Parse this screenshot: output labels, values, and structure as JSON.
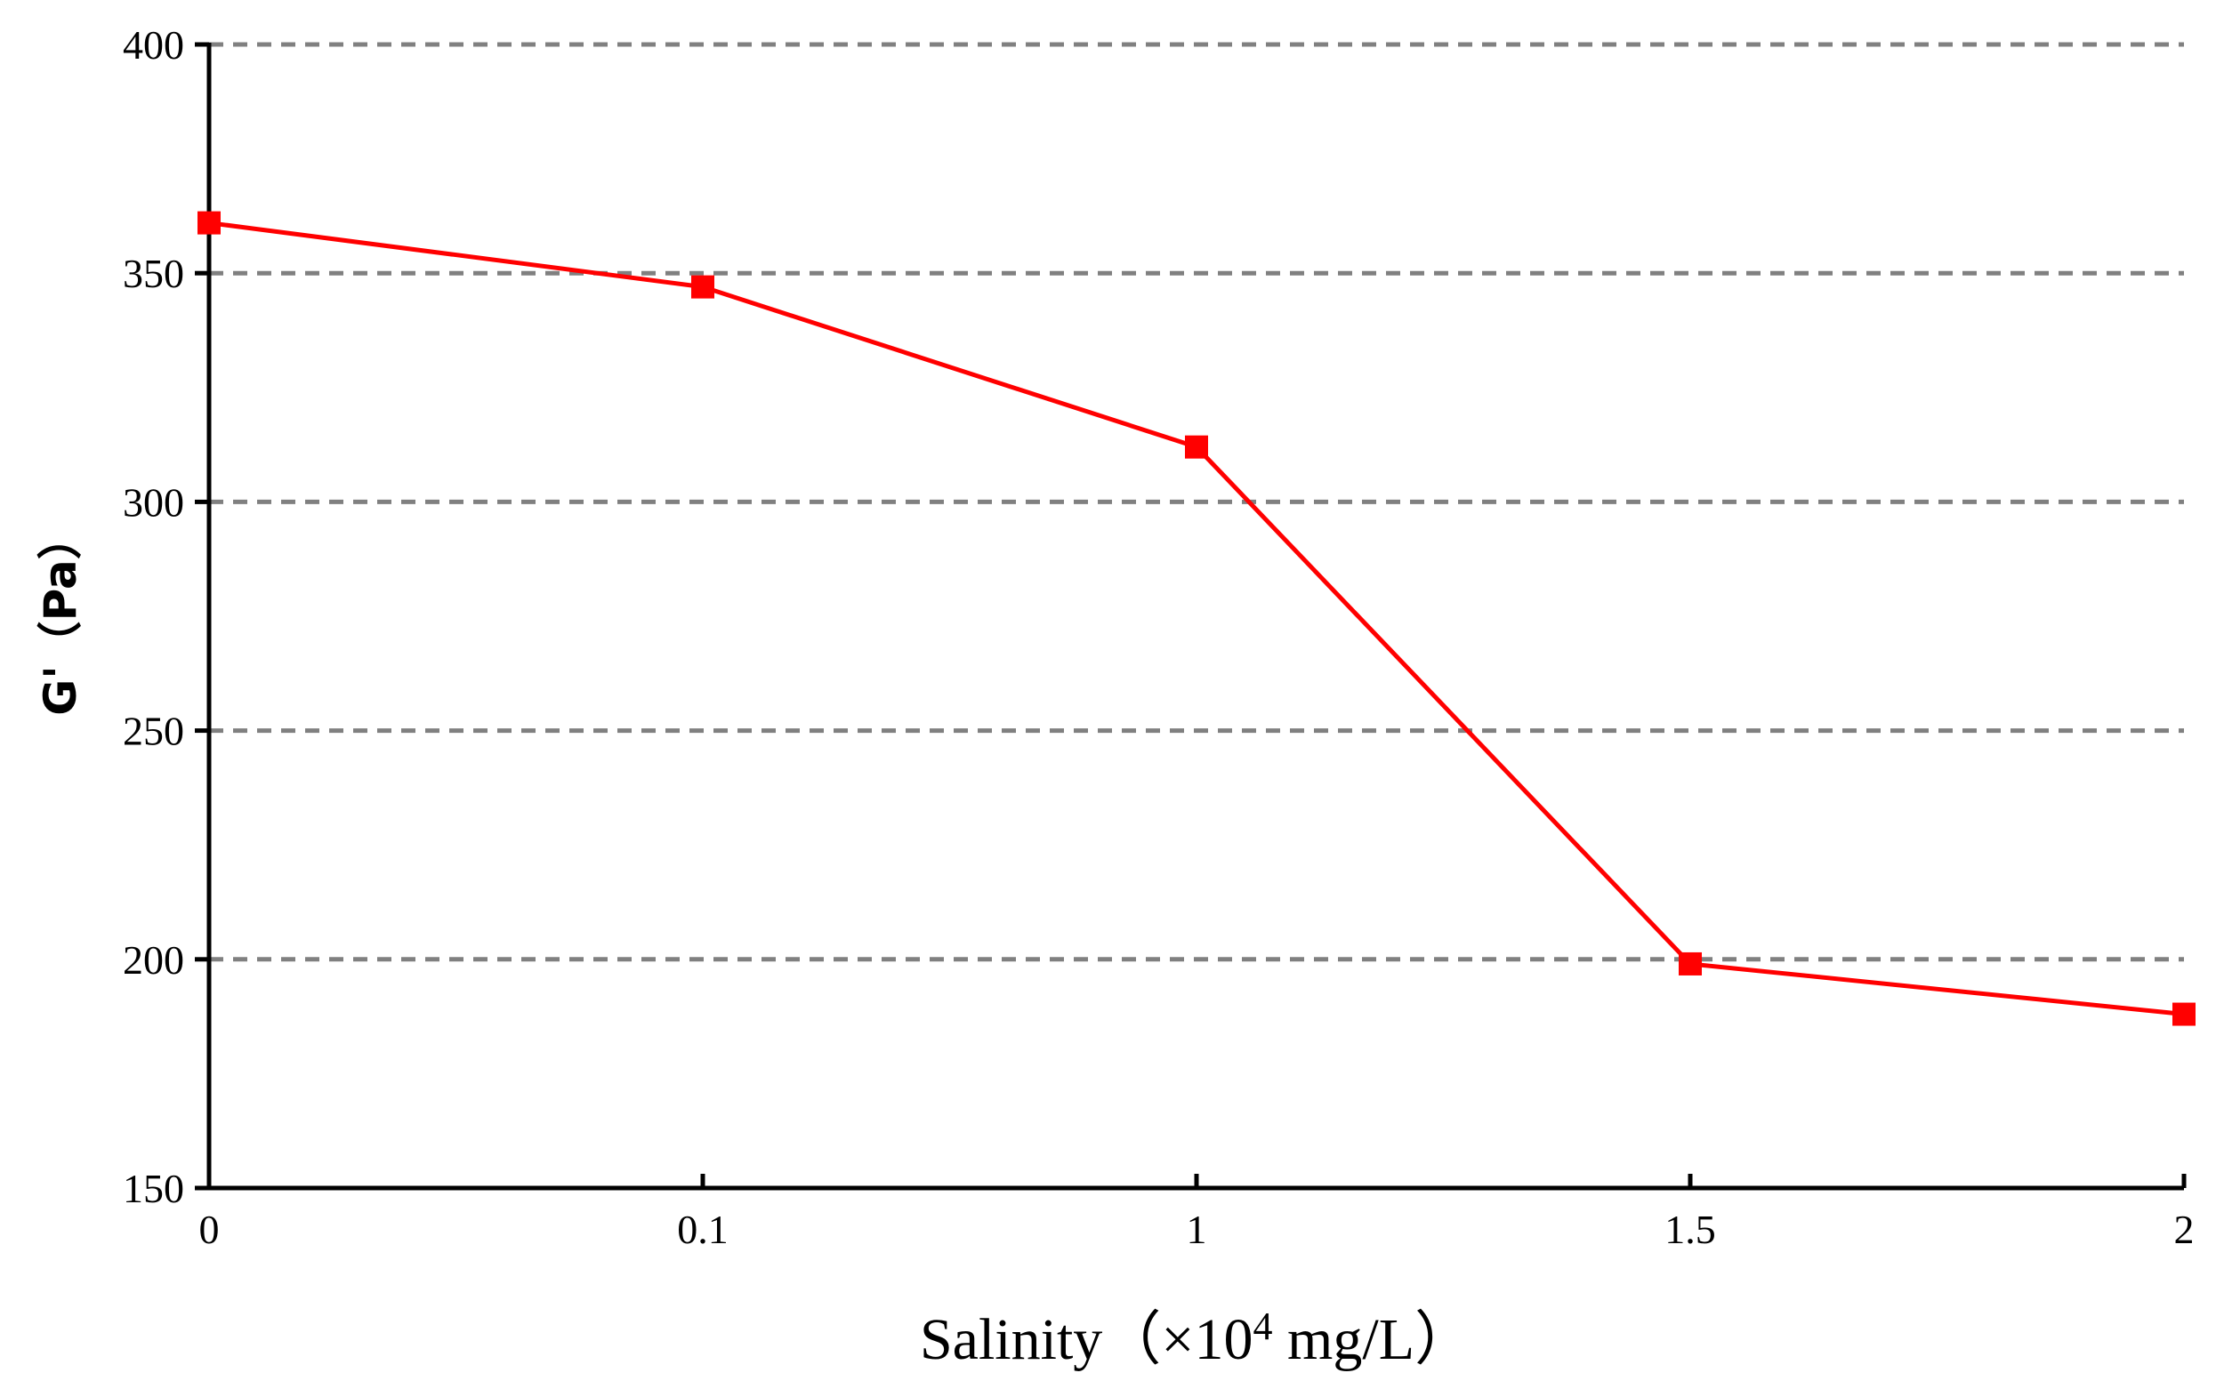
{
  "chart_data": {
    "type": "line",
    "categories": [
      "0",
      "0.1",
      "1",
      "1.5",
      "2"
    ],
    "series": [
      {
        "name": "G'",
        "values": [
          361,
          347,
          312,
          199,
          188
        ],
        "color": "#ff0000",
        "marker": "square"
      }
    ],
    "ylim": [
      150,
      400
    ],
    "yticks": [
      "150",
      "200",
      "250",
      "300",
      "350",
      "400"
    ],
    "xlabel_main": "Salinity",
    "xlabel_unit_prefix": "（×10",
    "xlabel_unit_exp": "4",
    "xlabel_unit_suffix": " mg/L）",
    "ylabel": "G'（Pa）",
    "grid": true,
    "grid_color": "#808080",
    "axis_color": "#000000"
  }
}
